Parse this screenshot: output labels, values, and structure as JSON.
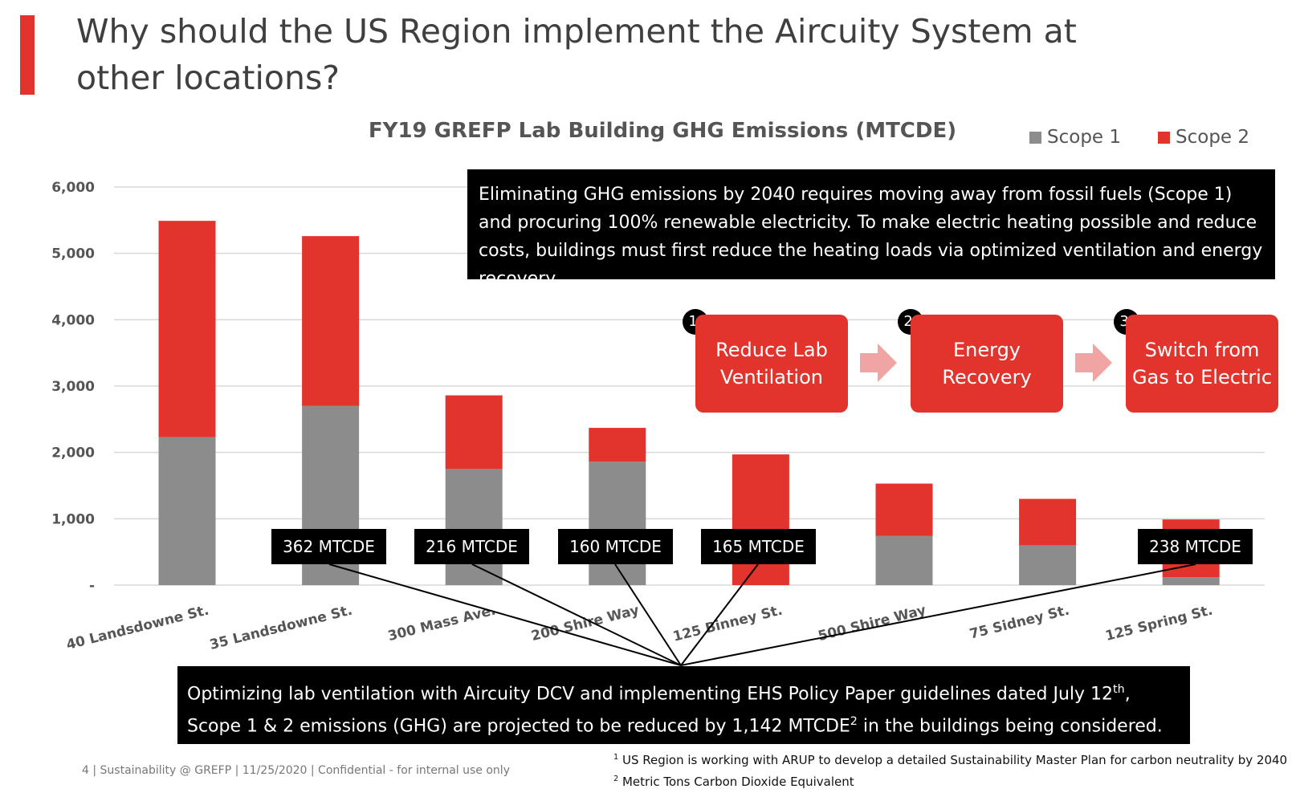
{
  "slide": {
    "title": "Why should the US Region implement the Aircuity System at other locations?",
    "accent_color": "#e2332c"
  },
  "chart_data": {
    "type": "bar",
    "stacked": true,
    "title": "FY19 GREFP Lab Building GHG Emissions (MTCDE)",
    "categories": [
      "40 Landsdowne St.",
      "35 Landsdowne St.",
      "300 Mass Ave.",
      "200 Shire Way",
      "125 Binney St.",
      "500 Shire Way",
      "75 Sidney St.",
      "125 Spring St."
    ],
    "series": [
      {
        "name": "Scope 1",
        "color": "#8c8c8c",
        "values": [
          2230,
          2700,
          1750,
          1860,
          0,
          740,
          600,
          120
        ]
      },
      {
        "name": "Scope 2",
        "color": "#e2332c",
        "values": [
          3260,
          2560,
          1110,
          510,
          1970,
          790,
          700,
          870
        ]
      }
    ],
    "yticks": [
      0,
      1000,
      2000,
      3000,
      4000,
      5000,
      6000
    ],
    "ytick_labels": [
      "-",
      "1,000",
      "2,000",
      "3,000",
      "4,000",
      "5,000",
      "6,000"
    ],
    "ylim": [
      0,
      6000
    ],
    "xlabel": "",
    "ylabel": "",
    "grid": true,
    "legend_position": "top-right",
    "annotations": [
      {
        "category": "40 Landsdowne St.",
        "text": "362 MTCDE"
      },
      {
        "category": "300 Mass Ave.",
        "text": "216 MTCDE"
      },
      {
        "category": "200 Shire Way",
        "text": "160 MTCDE"
      },
      {
        "category": "125 Binney St.",
        "text": "165 MTCDE"
      },
      {
        "category": "125 Spring St.",
        "text": "238 MTCDE"
      }
    ]
  },
  "top_callout": {
    "text": "Eliminating GHG emissions by 2040 requires moving away from fossil fuels (Scope 1) and procuring 100% renewable electricity. To make electric heating possible and reduce costs, buildings must first reduce the heating loads via optimized ventilation and energy recovery."
  },
  "steps": [
    {
      "number": "1.",
      "label": "Reduce Lab Ventilation"
    },
    {
      "number": "2.",
      "label": "Energy Recovery"
    },
    {
      "number": "3.",
      "label": "Switch from Gas to Electric"
    }
  ],
  "bottom_callout": {
    "part1": "Optimizing lab ventilation with Aircuity DCV and implementing EHS Policy Paper guidelines dated July 12",
    "sup1": "th",
    "part2": ", Scope 1 & 2 emissions (GHG) are projected to be reduced by 1,142 MTCDE",
    "sup2": "2",
    "part3": " in the buildings being considered."
  },
  "footer": {
    "text": "4  | Sustainability @ GREFP |  11/25/2020  |  Confidential - for internal use only"
  },
  "footnotes": [
    {
      "mark": "1",
      "text": " US Region is working with ARUP to develop a detailed Sustainability Master Plan for carbon neutrality by 2040"
    },
    {
      "mark": "2",
      "text": " Metric Tons Carbon Dioxide Equivalent"
    }
  ]
}
